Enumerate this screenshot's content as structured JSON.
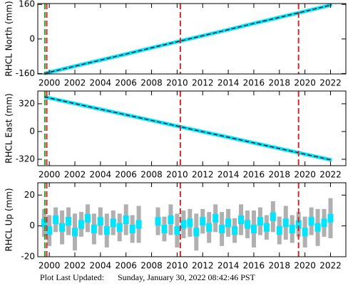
{
  "chart_data": [
    {
      "type": "line",
      "ylabel": "RHCL North (mm)",
      "xlim": [
        1999.1,
        2023.2
      ],
      "xticks": [
        2000,
        2002,
        2004,
        2006,
        2008,
        2010,
        2012,
        2014,
        2016,
        2018,
        2020,
        2022
      ],
      "ylim": [
        -162,
        164
      ],
      "yticks": [
        -160,
        0,
        160
      ],
      "vlines": [
        {
          "x": 1999.65,
          "color": "#2ca02c"
        },
        {
          "x": 1999.8,
          "color": "#d62728"
        },
        {
          "x": 2010.25,
          "color": "#d62728"
        },
        {
          "x": 2019.5,
          "color": "#d62728"
        }
      ],
      "series": [
        {
          "color": "#00e5ff",
          "x": [
            1999.6,
            2002,
            2004,
            2006,
            2008,
            2010,
            2012,
            2014,
            2016,
            2018,
            2020,
            2022.1
          ],
          "values": [
            -160,
            -126,
            -98,
            -70,
            -41,
            -13,
            15,
            43,
            72,
            100,
            128,
            158
          ]
        }
      ]
    },
    {
      "type": "line",
      "ylabel": "RHCL East (mm)",
      "xlim": [
        1999.1,
        2023.2
      ],
      "xticks": [
        2000,
        2002,
        2004,
        2006,
        2008,
        2010,
        2012,
        2014,
        2016,
        2018,
        2020,
        2022
      ],
      "ylim": [
        -394,
        467
      ],
      "yticks": [
        -320,
        0,
        320
      ],
      "vlines": [
        {
          "x": 1999.65,
          "color": "#2ca02c"
        },
        {
          "x": 1999.8,
          "color": "#d62728"
        },
        {
          "x": 2010.25,
          "color": "#d62728"
        },
        {
          "x": 2019.5,
          "color": "#d62728"
        }
      ],
      "series": [
        {
          "color": "#00e5ff",
          "x": [
            1999.6,
            2002,
            2004,
            2006,
            2008,
            2010,
            2012,
            2014,
            2016,
            2018,
            2020,
            2022.1
          ],
          "values": [
            400,
            322,
            257,
            193,
            128,
            63,
            -2,
            -66,
            -131,
            -196,
            -261,
            -329
          ]
        }
      ]
    },
    {
      "type": "scatter",
      "ylabel": "RHCL Up (mm)",
      "xlim": [
        1999.1,
        2023.2
      ],
      "xticks": [
        2000,
        2002,
        2004,
        2006,
        2008,
        2010,
        2012,
        2014,
        2016,
        2018,
        2020,
        2022
      ],
      "ylim": [
        -20,
        28
      ],
      "yticks": [
        -20,
        0,
        20
      ],
      "vlines": [
        {
          "x": 1999.65,
          "color": "#2ca02c"
        },
        {
          "x": 1999.8,
          "color": "#d62728"
        },
        {
          "x": 2010.25,
          "color": "#d62728"
        },
        {
          "x": 2019.5,
          "color": "#d62728"
        }
      ],
      "series": [
        {
          "color": "#00e5ff",
          "error_color": "#b0b0b0",
          "x": [
            1999.6,
            2000,
            2000.5,
            2001,
            2001.5,
            2002,
            2002.5,
            2003,
            2003.5,
            2004,
            2004.5,
            2005,
            2005.5,
            2006,
            2006.5,
            2007,
            2008.5,
            2009,
            2009.5,
            2010,
            2010.5,
            2011,
            2011.5,
            2012,
            2012.5,
            2013,
            2013.5,
            2014,
            2014.5,
            2015,
            2015.5,
            2016,
            2016.5,
            2017,
            2017.5,
            2018,
            2018.5,
            2019,
            2019.5,
            2020,
            2020.5,
            2021,
            2021.5,
            2022
          ],
          "values": [
            2,
            -3,
            4,
            -1,
            3,
            -4,
            1,
            5,
            -2,
            3,
            -3,
            2,
            -1,
            4,
            -2,
            1,
            3,
            -2,
            4,
            -3,
            1,
            2,
            -4,
            3,
            -1,
            5,
            -2,
            2,
            -3,
            4,
            1,
            -2,
            3,
            -1,
            6,
            -3,
            2,
            -2,
            1,
            -4,
            3,
            -1,
            2,
            5
          ],
          "errors": [
            9,
            10,
            8,
            11,
            9,
            12,
            8,
            9,
            10,
            9,
            11,
            8,
            9,
            10,
            9,
            12,
            9,
            8,
            10,
            11,
            9,
            9,
            12,
            8,
            10,
            9,
            11,
            9,
            8,
            10,
            9,
            12,
            9,
            8,
            10,
            9,
            11,
            9,
            8,
            10,
            9,
            12,
            9,
            13
          ]
        }
      ]
    }
  ],
  "footer": {
    "label": "Plot Last Updated:",
    "date": "Sunday, January 30, 2022 08:42:46 PST"
  }
}
